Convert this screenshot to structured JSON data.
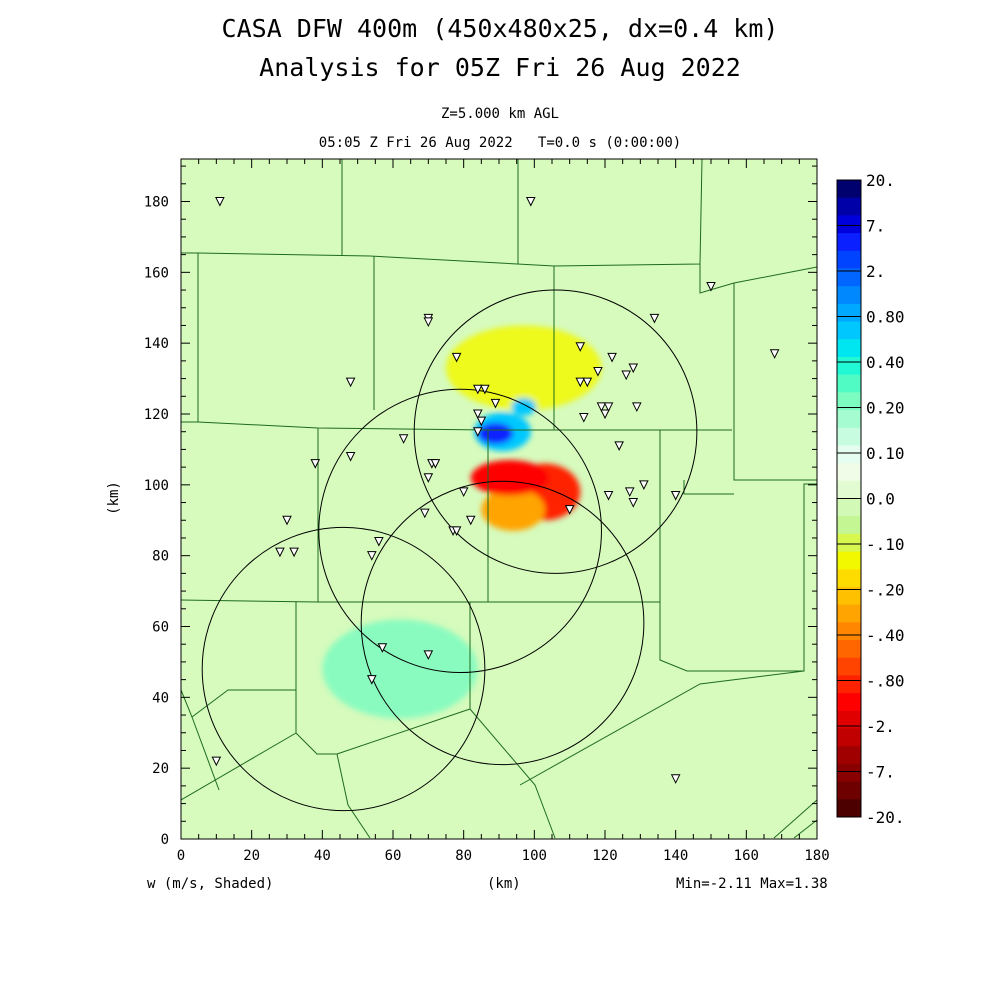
{
  "title_line1": "CASA DFW 400m (450x480x25, dx=0.4 km)",
  "title_line2": "Analysis for 05Z Fri 26 Aug 2022",
  "subtitle_line1": "Z=5.000 km AGL",
  "subtitle_line2": "05:05 Z Fri 26 Aug 2022   T=0.0 s (0:00:00)",
  "footer": {
    "variable": "w (m/s, Shaded)",
    "xunit": "(km)",
    "minmax": "Min=-2.11 Max=1.38"
  },
  "colors": {
    "background": "#ffffff",
    "field_base": "#d6fbbc",
    "county_lines": "#1e6b1e",
    "radar_rings": "#000000"
  },
  "chart_data": {
    "type": "heatmap",
    "title": "CASA DFW 400m (450x480x25, dx=0.4 km) Analysis for 05Z Fri 26 Aug 2022",
    "xlabel": "(km)",
    "ylabel": "(km)",
    "xlim": [
      0,
      180
    ],
    "ylim": [
      0,
      192
    ],
    "xticks": [
      0,
      20,
      40,
      60,
      80,
      100,
      120,
      140,
      160,
      180
    ],
    "yticks": [
      0,
      20,
      40,
      60,
      80,
      100,
      120,
      140,
      160,
      180
    ],
    "grid": false,
    "field": "w (m/s)",
    "min": -2.11,
    "max": 1.38,
    "colorbar": {
      "labels": [
        "20.",
        "7.",
        "2.",
        "0.80",
        "0.40",
        "0.20",
        "0.10",
        "0.0",
        "-.10",
        "-.20",
        "-.40",
        "-.80",
        "-2.",
        "-7.",
        "-20."
      ],
      "colors": [
        "#00006e",
        "#0000a8",
        "#0000dc",
        "#0a20ff",
        "#0044ff",
        "#0066ff",
        "#0088ff",
        "#00a8ff",
        "#00c8ff",
        "#00e6f0",
        "#20f8d6",
        "#50fcc4",
        "#7cfcc0",
        "#a4fcd0",
        "#c8fce0",
        "#e4fdf0",
        "#f0fce8",
        "#e2fbd0",
        "#d2fab6",
        "#c4f694",
        "#d8f850",
        "#f2f800",
        "#ffdc00",
        "#ffc000",
        "#ffa400",
        "#ff8600",
        "#ff6600",
        "#ff4400",
        "#ff2200",
        "#ff0000",
        "#e00000",
        "#c00000",
        "#a00000",
        "#880000",
        "#6e0000",
        "#4c0000"
      ]
    },
    "regions": [
      {
        "name": "core-updraft",
        "xc": 89,
        "yc": 114.5,
        "rx": 5,
        "ry": 3,
        "w": 2.0
      },
      {
        "name": "updraft-ring",
        "xc": 91,
        "yc": 115,
        "rx": 8,
        "ry": 5.5,
        "w": 0.5
      },
      {
        "name": "small-updraft",
        "xc": 97,
        "yc": 122,
        "rx": 3.5,
        "ry": 2.5,
        "w": 0.5
      },
      {
        "name": "downdraft-core",
        "xc": 93,
        "yc": 102,
        "rx": 11,
        "ry": 5,
        "w": -1.5
      },
      {
        "name": "downdraft-lobe",
        "xc": 103,
        "yc": 98,
        "rx": 10,
        "ry": 8,
        "w": -0.9
      },
      {
        "name": "downdraft-south",
        "xc": 94,
        "yc": 93,
        "rx": 9,
        "ry": 6,
        "w": -0.6
      },
      {
        "name": "yellow-band",
        "xc": 97,
        "yc": 133,
        "rx": 22,
        "ry": 12,
        "w": -0.2
      },
      {
        "name": "weak-ascent-sw",
        "xc": 62,
        "yc": 48,
        "rx": 22,
        "ry": 14,
        "w": 0.2
      }
    ],
    "radar_rings": [
      {
        "xc": 106,
        "yc": 115,
        "r": 40
      },
      {
        "xc": 79,
        "yc": 87,
        "r": 40
      },
      {
        "xc": 91,
        "yc": 61,
        "r": 40
      },
      {
        "xc": 46,
        "yc": 48,
        "r": 40
      }
    ],
    "stations": [
      [
        11,
        180
      ],
      [
        99,
        180
      ],
      [
        150,
        156
      ],
      [
        168,
        137
      ],
      [
        70,
        147
      ],
      [
        70,
        146
      ],
      [
        78,
        136
      ],
      [
        48,
        129
      ],
      [
        84,
        127
      ],
      [
        86,
        127
      ],
      [
        89,
        123
      ],
      [
        84,
        120
      ],
      [
        85,
        118
      ],
      [
        84,
        115
      ],
      [
        63,
        113
      ],
      [
        38,
        106
      ],
      [
        48,
        108
      ],
      [
        71,
        106
      ],
      [
        72,
        106
      ],
      [
        70,
        102
      ],
      [
        80,
        98
      ],
      [
        69,
        92
      ],
      [
        77,
        87
      ],
      [
        78,
        87
      ],
      [
        82,
        90
      ],
      [
        30,
        90
      ],
      [
        28,
        81
      ],
      [
        32,
        81
      ],
      [
        56,
        84
      ],
      [
        54,
        80
      ],
      [
        57,
        54
      ],
      [
        70,
        52
      ],
      [
        54,
        45
      ],
      [
        10,
        22
      ],
      [
        140,
        17
      ],
      [
        134,
        147
      ],
      [
        113,
        139
      ],
      [
        122,
        136
      ],
      [
        118,
        132
      ],
      [
        126,
        131
      ],
      [
        128,
        133
      ],
      [
        113,
        129
      ],
      [
        115,
        129
      ],
      [
        119,
        122
      ],
      [
        121,
        122
      ],
      [
        120,
        120
      ],
      [
        114,
        119
      ],
      [
        129,
        122
      ],
      [
        124,
        111
      ],
      [
        121,
        97
      ],
      [
        127,
        98
      ],
      [
        131,
        100
      ],
      [
        128,
        95
      ],
      [
        140,
        97
      ],
      [
        110,
        93
      ]
    ]
  }
}
